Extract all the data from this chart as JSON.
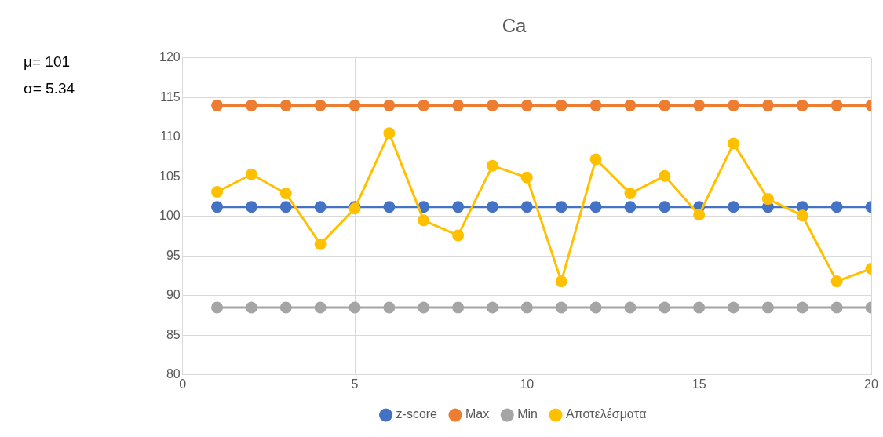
{
  "chart_data": {
    "type": "line",
    "title": "Ca",
    "annotations": [
      "μ= 101",
      "σ= 5.34"
    ],
    "x": [
      1,
      2,
      3,
      4,
      5,
      6,
      7,
      8,
      9,
      10,
      11,
      12,
      13,
      14,
      15,
      16,
      17,
      18,
      19,
      20
    ],
    "series": [
      {
        "name": "z-score",
        "color": "#4472c4",
        "values": [
          101.2,
          101.2,
          101.2,
          101.2,
          101.2,
          101.2,
          101.2,
          101.2,
          101.2,
          101.2,
          101.2,
          101.2,
          101.2,
          101.2,
          101.2,
          101.2,
          101.2,
          101.2,
          101.2,
          101.2
        ]
      },
      {
        "name": "Max",
        "color": "#ed7d31",
        "values": [
          114,
          114,
          114,
          114,
          114,
          114,
          114,
          114,
          114,
          114,
          114,
          114,
          114,
          114,
          114,
          114,
          114,
          114,
          114,
          114
        ]
      },
      {
        "name": "Min",
        "color": "#a5a5a5",
        "values": [
          88.5,
          88.5,
          88.5,
          88.5,
          88.5,
          88.5,
          88.5,
          88.5,
          88.5,
          88.5,
          88.5,
          88.5,
          88.5,
          88.5,
          88.5,
          88.5,
          88.5,
          88.5,
          88.5,
          88.5
        ]
      },
      {
        "name": "Αποτελέσματα",
        "color": "#ffc000",
        "values": [
          103.1,
          105.3,
          102.9,
          96.5,
          101,
          110.5,
          99.5,
          97.6,
          106.4,
          104.9,
          91.8,
          107.2,
          102.9,
          105.1,
          100.2,
          109.2,
          102.2,
          100.1,
          91.8,
          93.4
        ]
      }
    ],
    "xlim": [
      0,
      20
    ],
    "xticks": [
      0,
      5,
      10,
      15,
      20
    ],
    "ylim": [
      80,
      120
    ],
    "yticks": [
      80,
      85,
      90,
      95,
      100,
      105,
      110,
      115,
      120
    ],
    "grid": true,
    "legend": "bottom",
    "marker": "circle",
    "line_style": "solid"
  }
}
